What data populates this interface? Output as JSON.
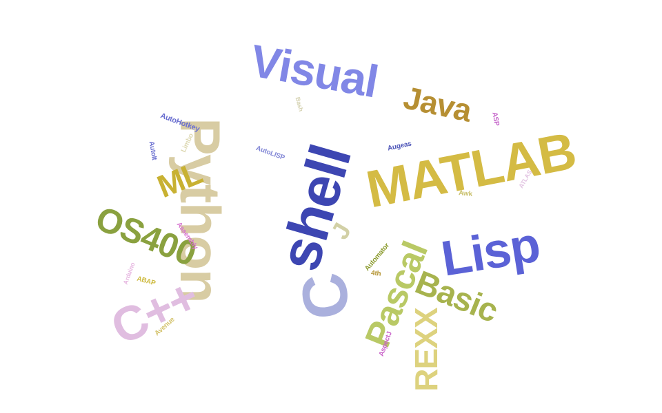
{
  "words": [
    {
      "text": "Visual",
      "color": "#8187e6"
    },
    {
      "text": "Java",
      "color": "#b68f33"
    },
    {
      "text": "MATLAB",
      "color": "#d4bb44"
    },
    {
      "text": "Python",
      "color": "#d8cca3"
    },
    {
      "text": "shell",
      "color": "#3d46b2"
    },
    {
      "text": "Lisp",
      "color": "#5b62d6"
    },
    {
      "text": "OS400",
      "color": "#8aa13f"
    },
    {
      "text": "C++",
      "color": "#e0bde0"
    },
    {
      "text": "C",
      "color": "#aab0dd"
    },
    {
      "text": "Pascal",
      "color": "#b9c965"
    },
    {
      "text": "Basic",
      "color": "#a7b34e"
    },
    {
      "text": "REXX",
      "color": "#ddd27e"
    },
    {
      "text": "ML",
      "color": "#c8b132"
    },
    {
      "text": "J",
      "color": "#d2d0a6"
    },
    {
      "text": "AutoHotkey",
      "color": "#6a6fd0"
    },
    {
      "text": "AutoIt",
      "color": "#6a6fd0"
    },
    {
      "text": "Limbo",
      "color": "#ddd8b1"
    },
    {
      "text": "AutoLISP",
      "color": "#8287d6"
    },
    {
      "text": "Bash",
      "color": "#d6d3b3"
    },
    {
      "text": "Augeas",
      "color": "#4d55b8"
    },
    {
      "text": "ASP",
      "color": "#c462c9"
    },
    {
      "text": "ATLAS",
      "color": "#e2c4e2"
    },
    {
      "text": "Awk",
      "color": "#c9c06c"
    },
    {
      "text": "Assembly",
      "color": "#d672cf"
    },
    {
      "text": "Arduino",
      "color": "#e6b6e0"
    },
    {
      "text": "ABAP",
      "color": "#cdb93c"
    },
    {
      "text": "Avenue",
      "color": "#d3c26a"
    },
    {
      "text": "Automator",
      "color": "#8a9a2c"
    },
    {
      "text": "4th",
      "color": "#b59535"
    },
    {
      "text": "AspectJ",
      "color": "#c85fc8"
    }
  ]
}
